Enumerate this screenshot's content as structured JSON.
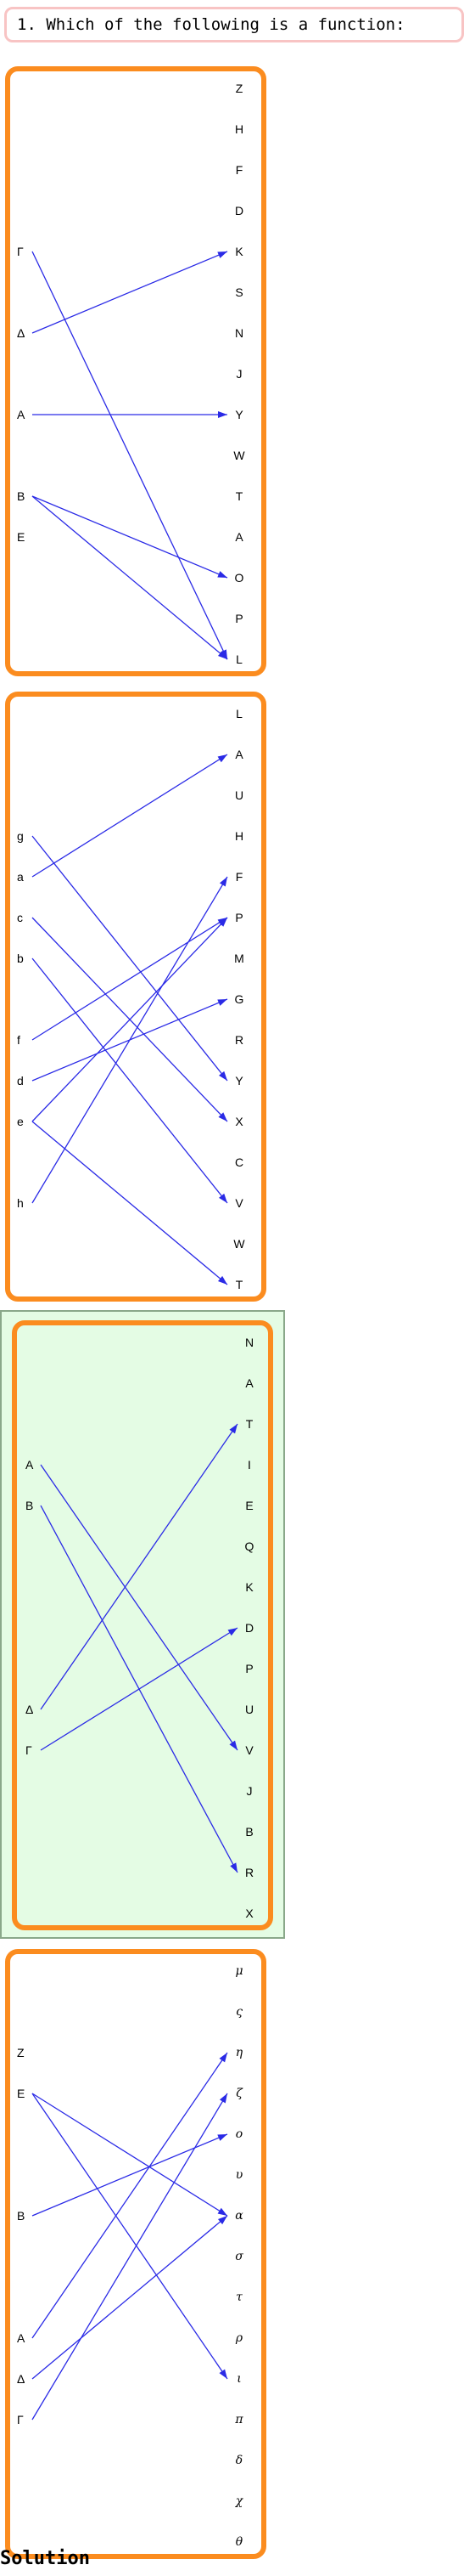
{
  "question": "1. Which of the following is a function:",
  "solution_label": "Solution",
  "arrow_color": "#2a2ae6",
  "box_color": "#fb8c1f",
  "selected_background": "#e4fce4",
  "options": [
    {
      "selected": false,
      "domain": [
        "Γ",
        "Δ",
        "A",
        "B",
        "E"
      ],
      "codomain": [
        "Z",
        "H",
        "F",
        "D",
        "K",
        "S",
        "N",
        "J",
        "Y",
        "W",
        "T",
        "A",
        "O",
        "P",
        "L"
      ],
      "mappings": [
        [
          "Γ",
          "L"
        ],
        [
          "Δ",
          "K"
        ],
        [
          "A",
          "Y"
        ],
        [
          "B",
          "O"
        ],
        [
          "B",
          "L"
        ]
      ]
    },
    {
      "selected": false,
      "domain": [
        "g",
        "a",
        "c",
        "b",
        "f",
        "d",
        "e",
        "h"
      ],
      "codomain": [
        "L",
        "A",
        "U",
        "H",
        "F",
        "P",
        "M",
        "G",
        "R",
        "Y",
        "X",
        "C",
        "V",
        "W",
        "T"
      ],
      "mappings": [
        [
          "g",
          "Y"
        ],
        [
          "a",
          "A"
        ],
        [
          "c",
          "X"
        ],
        [
          "b",
          "V"
        ],
        [
          "f",
          "P"
        ],
        [
          "d",
          "G"
        ],
        [
          "e",
          "P"
        ],
        [
          "e",
          "T"
        ],
        [
          "h",
          "F"
        ]
      ]
    },
    {
      "selected": true,
      "domain": [
        "A",
        "B",
        "Δ",
        "Γ"
      ],
      "codomain": [
        "N",
        "A",
        "T",
        "I",
        "E",
        "Q",
        "K",
        "D",
        "P",
        "U",
        "V",
        "J",
        "B",
        "R",
        "X"
      ],
      "mappings": [
        [
          "A",
          "V"
        ],
        [
          "B",
          "R"
        ],
        [
          "Δ",
          "T"
        ],
        [
          "Γ",
          "D"
        ]
      ]
    },
    {
      "selected": false,
      "domain": [
        "Z",
        "E",
        "B",
        "A",
        "Δ",
        "Γ"
      ],
      "codomain": [
        "μ",
        "ς",
        "η",
        "ζ",
        "ο",
        "υ",
        "α",
        "σ",
        "τ",
        "ρ",
        "ι",
        "π",
        "δ",
        "χ",
        "θ"
      ],
      "mappings": [
        [
          "E",
          "α"
        ],
        [
          "E",
          "ι"
        ],
        [
          "B",
          "ο"
        ],
        [
          "A",
          "η"
        ],
        [
          "Δ",
          "α"
        ],
        [
          "Γ",
          "ζ"
        ]
      ]
    }
  ]
}
